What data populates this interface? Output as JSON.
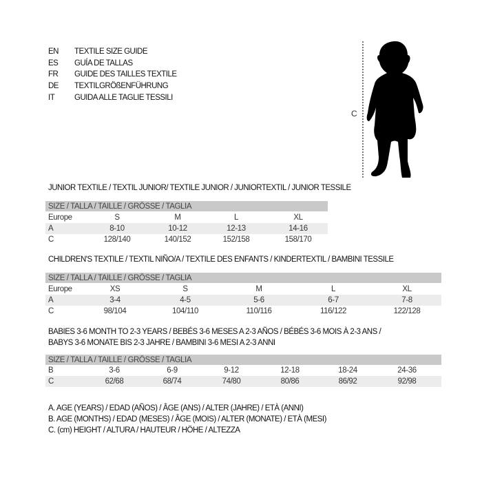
{
  "languages": [
    {
      "code": "EN",
      "title": "TEXTILE SIZE GUIDE"
    },
    {
      "code": "ES",
      "title": "GUÍA DE TALLAS"
    },
    {
      "code": "FR",
      "title": "GUIDE DES TAILLES TEXTILE"
    },
    {
      "code": "DE",
      "title": "TEXTILGRÖßENFÜHRUNG"
    },
    {
      "code": "IT",
      "title": "GUIDA ALLE TAGLIE TESSILI"
    }
  ],
  "figure": {
    "height_label": "C",
    "icon": "child-silhouette-icon"
  },
  "junior": {
    "title": "JUNIOR TEXTILE / TEXTIL JUNIOR/ TEXTILE JUNIOR / JUNIORTEXTIL / JUNIOR TESSILE",
    "header": "SIZE / TALLA / TAILLE / GRÖSSE / TAGLIA",
    "rows": [
      {
        "label": "Europe",
        "values": [
          "S",
          "M",
          "L",
          "XL"
        ]
      },
      {
        "label": "A",
        "values": [
          "8-10",
          "10-12",
          "12-13",
          "14-16"
        ]
      },
      {
        "label": "C",
        "values": [
          "128/140",
          "140/152",
          "152/158",
          "158/170"
        ]
      }
    ]
  },
  "children": {
    "title": "CHILDREN'S TEXTILE / TEXTIL NIÑO/A / TEXTILE DES ENFANTS / KINDERTEXTIL / BAMBINI TESSILE",
    "header": "SIZE / TALLA / TAILLE / GRÖSSE / TAGLIA",
    "rows": [
      {
        "label": "Europe",
        "values": [
          "XS",
          "S",
          "M",
          "L",
          "XL"
        ]
      },
      {
        "label": "A",
        "values": [
          "3-4",
          "4-5",
          "5-6",
          "6-7",
          "7-8"
        ]
      },
      {
        "label": "C",
        "values": [
          "98/104",
          "104/110",
          "110/116",
          "116/122",
          "122/128"
        ]
      }
    ]
  },
  "babies": {
    "title_line1": "BABIES 3-6 MONTH TO 2-3 YEARS / BEBÉS 3-6 MESES A 2-3 AÑOS / BÉBÉS 3-6 MOIS À 2-3 ANS /",
    "title_line2": "BABYS 3-6 MONATE BIS 2-3 JAHRE / BAMBINI 3-6 MESI A 2-3 ANNI",
    "header": "SIZE / TALLA / TAILLE / GRÖSSE / TAGLIA",
    "rows": [
      {
        "label": "B",
        "values": [
          "3-6",
          "6-9",
          "9-12",
          "12-18",
          "18-24",
          "24-36"
        ]
      },
      {
        "label": "C",
        "values": [
          "62/68",
          "68/74",
          "74/80",
          "80/86",
          "86/92",
          "92/98"
        ]
      }
    ]
  },
  "legend": [
    "A. AGE (YEARS) / EDAD (AÑOS) / ÂGE (ANS) / ALTER (JAHRE) / ETÀ (ANNI)",
    "B. AGE (MONTHS) / EDAD (MESES) / ÂGE (MOIS) / ALTER (MONATE) / ETÀ (MESI)",
    "C. (cm) HEIGHT / ALTURA / HAUTEUR / HÖHE / ALTEZZA"
  ]
}
